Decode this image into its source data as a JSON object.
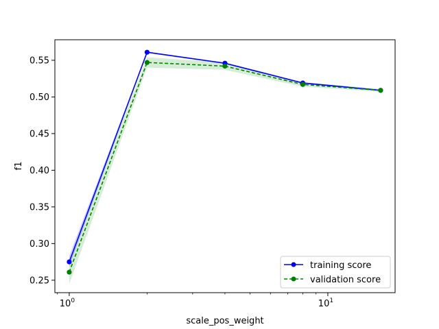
{
  "chart_data": {
    "type": "line",
    "x_scale": "log",
    "xlabel": "scale_pos_weight",
    "ylabel": "f1",
    "xlim": [
      0.88,
      18.2
    ],
    "ylim": [
      0.233,
      0.578
    ],
    "x": [
      1,
      2,
      4,
      8,
      16
    ],
    "x_ticks": [
      {
        "value": 1,
        "base": "10",
        "exp": "0"
      },
      {
        "value": 10,
        "base": "10",
        "exp": "1"
      }
    ],
    "y_ticks": [
      {
        "value": 0.25,
        "label": "0.25"
      },
      {
        "value": 0.3,
        "label": "0.30"
      },
      {
        "value": 0.35,
        "label": "0.35"
      },
      {
        "value": 0.4,
        "label": "0.40"
      },
      {
        "value": 0.45,
        "label": "0.45"
      },
      {
        "value": 0.5,
        "label": "0.50"
      },
      {
        "value": 0.55,
        "label": "0.55"
      }
    ],
    "series": [
      {
        "name": "training score",
        "color": "#0000ff",
        "band_color": "#0000ff",
        "dashed": false,
        "values": [
          0.275,
          0.561,
          0.546,
          0.519,
          0.509
        ],
        "lower": [
          0.268,
          0.56,
          0.545,
          0.518,
          0.508
        ],
        "upper": [
          0.283,
          0.562,
          0.547,
          0.52,
          0.51
        ]
      },
      {
        "name": "validation score",
        "color": "#008000",
        "band_color": "#2ca02c",
        "dashed": true,
        "values": [
          0.261,
          0.547,
          0.542,
          0.517,
          0.509
        ],
        "lower": [
          0.245,
          0.54,
          0.537,
          0.514,
          0.507
        ],
        "upper": [
          0.277,
          0.554,
          0.547,
          0.52,
          0.511
        ]
      }
    ],
    "legend_position": "lower-right",
    "grid": false
  }
}
